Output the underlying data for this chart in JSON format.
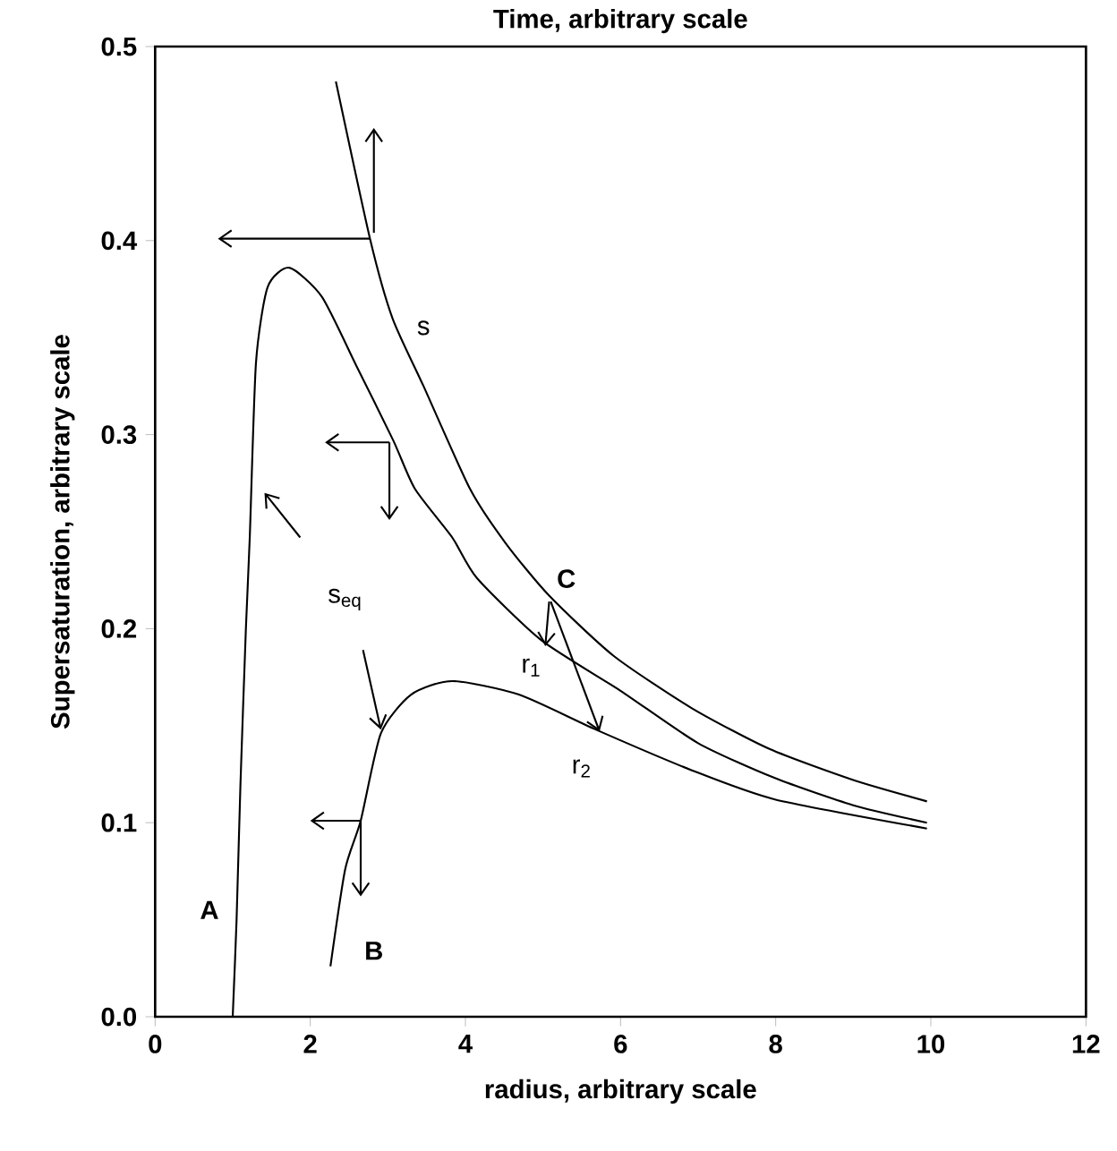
{
  "chart_data": {
    "type": "line",
    "xlabel": "radius, arbitrary scale",
    "ylabel": "Supersaturation, arbitrary scale",
    "x2label": "Time, arbitrary scale",
    "xlim": [
      0,
      12
    ],
    "xticks": [
      0,
      2,
      4,
      6,
      8,
      10,
      12
    ],
    "ylim": [
      0,
      0.5
    ],
    "yticks": [
      {
        "value": 0,
        "label": "0.0"
      },
      0.1,
      0.2,
      0.3,
      0.4,
      0.5
    ],
    "marker": "none",
    "line_style": "solid",
    "grid": false,
    "series": [
      {
        "color": "#000000",
        "x": [
          2.33,
          2.77,
          3.06,
          3.46,
          4.06,
          4.52,
          5.08,
          5.91,
          6.92,
          7.92,
          9.0,
          9.95
        ],
        "values": [
          0.482,
          0.401,
          0.36,
          0.325,
          0.272,
          0.244,
          0.217,
          0.186,
          0.159,
          0.138,
          0.122,
          0.111
        ]
      },
      {
        "color": "#000000",
        "x": [
          1.0,
          1.05,
          1.1,
          1.17,
          1.22,
          1.3,
          1.45,
          1.73,
          2.15,
          2.6,
          3.07,
          3.35,
          3.83,
          4.15,
          4.98,
          6.0,
          7.0,
          7.99,
          9.0,
          9.95
        ],
        "values": [
          0.0,
          0.05,
          0.12,
          0.2,
          0.247,
          0.337,
          0.376,
          0.386,
          0.371,
          0.335,
          0.297,
          0.272,
          0.247,
          0.226,
          0.194,
          0.168,
          0.141,
          0.123,
          0.109,
          0.1
        ]
      },
      {
        "color": "#000000",
        "x": [
          2.26,
          2.45,
          2.65,
          2.91,
          3.3,
          3.83,
          4.69,
          5.68,
          6.92,
          7.99,
          9.95
        ],
        "values": [
          0.026,
          0.076,
          0.101,
          0.146,
          0.166,
          0.173,
          0.166,
          0.148,
          0.127,
          0.112,
          0.097
        ]
      }
    ],
    "annotations": [
      "s",
      "s$_{eq}$",
      {
        "text": "C",
        "x": 5.08,
        "y": 0.217
      },
      "r$_{1}$",
      "r$_{2}$",
      "A",
      "B"
    ]
  }
}
